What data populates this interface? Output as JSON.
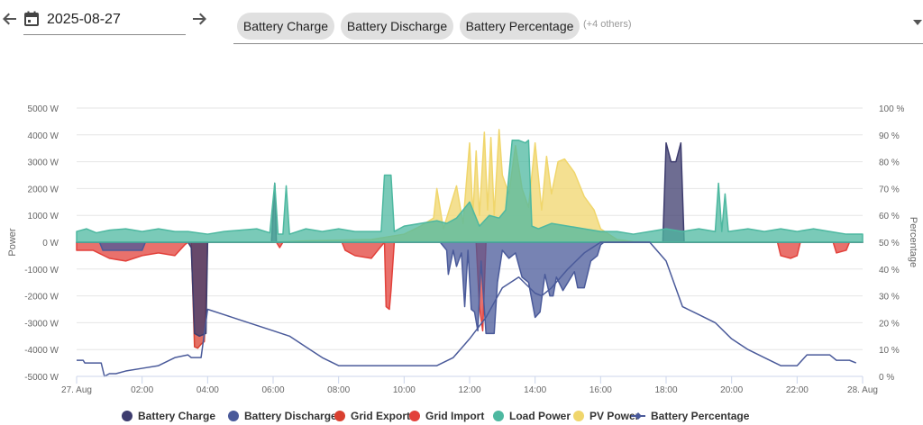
{
  "toolbar": {
    "prev_icon": "arrow-left-icon",
    "next_icon": "arrow-right-icon",
    "calendar_icon": "calendar-icon",
    "date": "2025-08-27",
    "chips": [
      "Battery Charge",
      "Battery Discharge",
      "Battery Percentage"
    ],
    "others": "(+4 others)",
    "dropdown_icon": "caret-down-icon"
  },
  "chart_data": {
    "type": "area",
    "x_start_hour": 0,
    "x_end_hour": 24,
    "xticks": [
      "27. Aug",
      "02:00",
      "04:00",
      "06:00",
      "08:00",
      "10:00",
      "12:00",
      "14:00",
      "16:00",
      "18:00",
      "20:00",
      "22:00",
      "28. Aug"
    ],
    "yticks_left": [
      "5000 W",
      "4000 W",
      "3000 W",
      "2000 W",
      "1000 W",
      "0 W",
      "-1000 W",
      "-2000 W",
      "-3000 W",
      "-4000 W",
      "-5000 W"
    ],
    "yticks_right": [
      "100 %",
      "90 %",
      "80 %",
      "70 %",
      "60 %",
      "50 %",
      "40 %",
      "30 %",
      "20 %",
      "10 %",
      "0 %"
    ],
    "ylabel_left": "Power",
    "ylabel_right": "Percentage",
    "ylim_left": [
      -5000,
      5000
    ],
    "ylim_right": [
      0,
      100
    ],
    "series": [
      {
        "name": "Battery Charge",
        "color": "#3d3c6e",
        "axis": "left",
        "points": [
          [
            0,
            0
          ],
          [
            3.4,
            0
          ],
          [
            3.5,
            -200
          ],
          [
            3.6,
            -3400
          ],
          [
            3.75,
            -3500
          ],
          [
            3.95,
            -3400
          ],
          [
            4.0,
            0
          ],
          [
            5.95,
            0
          ],
          [
            6.05,
            2200
          ],
          [
            6.1,
            0
          ],
          [
            17.9,
            0
          ],
          [
            18.0,
            3700
          ],
          [
            18.15,
            3000
          ],
          [
            18.3,
            3000
          ],
          [
            18.45,
            3700
          ],
          [
            18.55,
            0
          ],
          [
            24,
            0
          ]
        ]
      },
      {
        "name": "Battery Discharge",
        "color": "#4a5a9a",
        "axis": "left",
        "points": [
          [
            0,
            0
          ],
          [
            0.7,
            0
          ],
          [
            0.8,
            -300
          ],
          [
            2.0,
            -300
          ],
          [
            2.1,
            0
          ],
          [
            11.1,
            0
          ],
          [
            11.3,
            -300
          ],
          [
            11.35,
            -1200
          ],
          [
            11.5,
            -300
          ],
          [
            11.6,
            -900
          ],
          [
            11.75,
            -400
          ],
          [
            11.85,
            -2400
          ],
          [
            11.95,
            -300
          ],
          [
            12.05,
            -2500
          ],
          [
            12.15,
            -2600
          ],
          [
            12.25,
            -3300
          ],
          [
            12.35,
            -700
          ],
          [
            12.5,
            -3400
          ],
          [
            12.6,
            -3400
          ],
          [
            12.75,
            -3400
          ],
          [
            12.85,
            -1500
          ],
          [
            13.0,
            -300
          ],
          [
            13.2,
            -600
          ],
          [
            13.4,
            -400
          ],
          [
            13.6,
            -1300
          ],
          [
            13.8,
            -1500
          ],
          [
            14.0,
            -2800
          ],
          [
            14.15,
            -2600
          ],
          [
            14.3,
            -1200
          ],
          [
            14.45,
            -2000
          ],
          [
            14.55,
            -2000
          ],
          [
            14.65,
            -1300
          ],
          [
            14.85,
            -1800
          ],
          [
            15.0,
            -1500
          ],
          [
            15.2,
            -1100
          ],
          [
            15.3,
            -1700
          ],
          [
            15.5,
            -1700
          ],
          [
            15.7,
            -700
          ],
          [
            15.9,
            -500
          ],
          [
            16.0,
            -100
          ],
          [
            16.1,
            0
          ],
          [
            24,
            0
          ]
        ]
      },
      {
        "name": "Grid Export",
        "color": "#d94030",
        "axis": "left",
        "points": [
          [
            0,
            0
          ],
          [
            3.5,
            0
          ],
          [
            3.6,
            -3900
          ],
          [
            3.7,
            -3950
          ],
          [
            3.8,
            -3800
          ],
          [
            3.9,
            -3700
          ],
          [
            4.0,
            0
          ],
          [
            24,
            0
          ]
        ]
      },
      {
        "name": "Grid Import",
        "color": "#e2413b",
        "axis": "left",
        "points": [
          [
            0,
            -300
          ],
          [
            0.5,
            -300
          ],
          [
            1.0,
            -600
          ],
          [
            1.5,
            -700
          ],
          [
            2.0,
            -500
          ],
          [
            2.5,
            -400
          ],
          [
            3.0,
            -500
          ],
          [
            3.3,
            -100
          ],
          [
            3.4,
            0
          ],
          [
            6.1,
            0
          ],
          [
            6.2,
            -200
          ],
          [
            6.3,
            0
          ],
          [
            8.1,
            0
          ],
          [
            8.2,
            -300
          ],
          [
            8.5,
            -500
          ],
          [
            9.0,
            -600
          ],
          [
            9.2,
            -300
          ],
          [
            9.4,
            0
          ],
          [
            9.45,
            -2400
          ],
          [
            9.55,
            -2500
          ],
          [
            9.6,
            -1800
          ],
          [
            9.7,
            0
          ],
          [
            12.2,
            0
          ],
          [
            12.3,
            -2400
          ],
          [
            12.4,
            -3300
          ],
          [
            12.5,
            0
          ],
          [
            21.4,
            0
          ],
          [
            21.5,
            -500
          ],
          [
            21.8,
            -600
          ],
          [
            22.0,
            -500
          ],
          [
            22.1,
            0
          ],
          [
            23.1,
            0
          ],
          [
            23.2,
            -400
          ],
          [
            23.5,
            -300
          ],
          [
            23.6,
            0
          ],
          [
            24,
            0
          ]
        ]
      },
      {
        "name": "Load Power",
        "color": "#4db8a0",
        "axis": "left",
        "points": [
          [
            0,
            400
          ],
          [
            0.3,
            500
          ],
          [
            0.6,
            350
          ],
          [
            1.0,
            450
          ],
          [
            1.5,
            500
          ],
          [
            2.0,
            400
          ],
          [
            2.5,
            500
          ],
          [
            3.0,
            400
          ],
          [
            3.4,
            400
          ],
          [
            4.0,
            300
          ],
          [
            4.5,
            400
          ],
          [
            5.0,
            450
          ],
          [
            5.5,
            500
          ],
          [
            5.9,
            350
          ],
          [
            6.05,
            2200
          ],
          [
            6.15,
            300
          ],
          [
            6.3,
            300
          ],
          [
            6.4,
            2100
          ],
          [
            6.5,
            300
          ],
          [
            7.0,
            500
          ],
          [
            7.5,
            400
          ],
          [
            8.0,
            500
          ],
          [
            8.5,
            400
          ],
          [
            9.0,
            400
          ],
          [
            9.3,
            400
          ],
          [
            9.4,
            2500
          ],
          [
            9.6,
            2500
          ],
          [
            9.7,
            400
          ],
          [
            10.0,
            600
          ],
          [
            10.5,
            700
          ],
          [
            11.0,
            800
          ],
          [
            11.3,
            700
          ],
          [
            11.6,
            900
          ],
          [
            12.0,
            1500
          ],
          [
            12.3,
            600
          ],
          [
            12.6,
            1000
          ],
          [
            12.9,
            900
          ],
          [
            13.1,
            1200
          ],
          [
            13.3,
            3800
          ],
          [
            13.5,
            3800
          ],
          [
            13.7,
            3700
          ],
          [
            13.8,
            3800
          ],
          [
            13.9,
            600
          ],
          [
            14.1,
            500
          ],
          [
            14.5,
            700
          ],
          [
            15.0,
            600
          ],
          [
            15.5,
            500
          ],
          [
            16.0,
            400
          ],
          [
            16.5,
            400
          ],
          [
            17.0,
            300
          ],
          [
            17.5,
            400
          ],
          [
            18.0,
            500
          ],
          [
            18.5,
            400
          ],
          [
            19.0,
            500
          ],
          [
            19.5,
            400
          ],
          [
            19.6,
            2200
          ],
          [
            19.7,
            400
          ],
          [
            19.8,
            1800
          ],
          [
            19.9,
            400
          ],
          [
            20.5,
            500
          ],
          [
            21.0,
            400
          ],
          [
            21.5,
            500
          ],
          [
            22.0,
            400
          ],
          [
            22.5,
            500
          ],
          [
            23.0,
            400
          ],
          [
            23.5,
            300
          ],
          [
            24,
            300
          ]
        ]
      },
      {
        "name": "PV Power",
        "color": "#f0d66c",
        "axis": "left",
        "points": [
          [
            0,
            0
          ],
          [
            6.0,
            0
          ],
          [
            7.0,
            50
          ],
          [
            9.0,
            100
          ],
          [
            10.0,
            300
          ],
          [
            10.5,
            600
          ],
          [
            10.9,
            900
          ],
          [
            11.0,
            2000
          ],
          [
            11.2,
            500
          ],
          [
            11.6,
            2100
          ],
          [
            11.8,
            700
          ],
          [
            12.0,
            3700
          ],
          [
            12.1,
            1000
          ],
          [
            12.2,
            3400
          ],
          [
            12.3,
            1000
          ],
          [
            12.45,
            4100
          ],
          [
            12.55,
            1200
          ],
          [
            12.65,
            3900
          ],
          [
            12.75,
            1000
          ],
          [
            12.9,
            4200
          ],
          [
            13.0,
            2500
          ],
          [
            13.2,
            1800
          ],
          [
            13.4,
            3600
          ],
          [
            13.6,
            2000
          ],
          [
            13.8,
            1300
          ],
          [
            14.0,
            3700
          ],
          [
            14.2,
            1200
          ],
          [
            14.35,
            3200
          ],
          [
            14.5,
            1800
          ],
          [
            14.7,
            3000
          ],
          [
            14.9,
            3100
          ],
          [
            15.2,
            2600
          ],
          [
            15.5,
            1700
          ],
          [
            15.8,
            1200
          ],
          [
            16.0,
            500
          ],
          [
            16.5,
            100
          ],
          [
            17.0,
            20
          ],
          [
            18.0,
            0
          ],
          [
            24,
            0
          ]
        ]
      },
      {
        "name": "Battery Percentage",
        "color": "#4a5a9a",
        "axis": "right",
        "points": [
          [
            0,
            6
          ],
          [
            0.2,
            6
          ],
          [
            0.25,
            5
          ],
          [
            0.75,
            5
          ],
          [
            0.85,
            0
          ],
          [
            1.0,
            1
          ],
          [
            1.2,
            1
          ],
          [
            1.5,
            2
          ],
          [
            2.0,
            3
          ],
          [
            2.5,
            4
          ],
          [
            3.0,
            7
          ],
          [
            3.4,
            8
          ],
          [
            3.5,
            7
          ],
          [
            3.8,
            7
          ],
          [
            4.0,
            25
          ],
          [
            4.5,
            23
          ],
          [
            5.0,
            21
          ],
          [
            6.0,
            17
          ],
          [
            6.5,
            15
          ],
          [
            7.0,
            11
          ],
          [
            7.5,
            7
          ],
          [
            8.0,
            4
          ],
          [
            9.0,
            4
          ],
          [
            10.0,
            4
          ],
          [
            11.0,
            4
          ],
          [
            11.5,
            7
          ],
          [
            12.0,
            14
          ],
          [
            12.5,
            22
          ],
          [
            13.0,
            33
          ],
          [
            13.5,
            37
          ],
          [
            14.0,
            31
          ],
          [
            14.2,
            30
          ],
          [
            14.5,
            33
          ],
          [
            15.0,
            40
          ],
          [
            15.5,
            46
          ],
          [
            16.0,
            50
          ],
          [
            17.0,
            50
          ],
          [
            17.5,
            50
          ],
          [
            18.0,
            43
          ],
          [
            18.5,
            26
          ],
          [
            19.0,
            23
          ],
          [
            19.5,
            20
          ],
          [
            20.0,
            14
          ],
          [
            20.5,
            10
          ],
          [
            21.0,
            7
          ],
          [
            21.5,
            4
          ],
          [
            22.0,
            4
          ],
          [
            22.3,
            8
          ],
          [
            22.6,
            8
          ],
          [
            23.0,
            8
          ],
          [
            23.2,
            6
          ],
          [
            23.6,
            6
          ],
          [
            23.8,
            5
          ]
        ]
      }
    ]
  }
}
